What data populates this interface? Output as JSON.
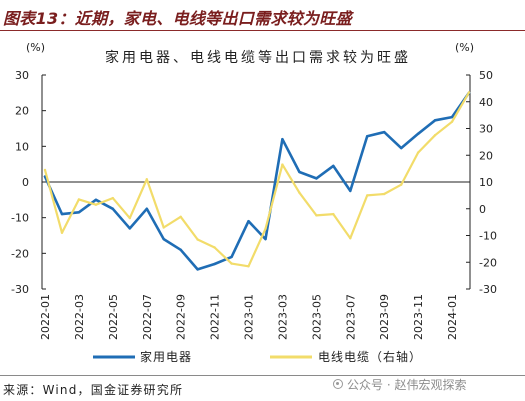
{
  "header": {
    "title": "图表13：近期，家电、电线等出口需求较为旺盛"
  },
  "footer": {
    "source": "来源：Wind，国金证券研究所",
    "watermark": "公众号 · 赵伟宏观探索",
    "watermark_icon": "wechat-icon"
  },
  "colors": {
    "header_text": "#7a1e1e",
    "header_rule": "#8b2a2a",
    "axis": "#222222"
  },
  "chart_data": {
    "type": "line",
    "title": "家用电器、电线电缆等出口需求较为旺盛",
    "x": [
      "2022-01",
      "2022-02",
      "2022-03",
      "2022-04",
      "2022-05",
      "2022-06",
      "2022-07",
      "2022-08",
      "2022-09",
      "2022-10",
      "2022-11",
      "2022-12",
      "2023-01",
      "2023-02",
      "2023-03",
      "2023-04",
      "2023-05",
      "2023-06",
      "2023-07",
      "2023-08",
      "2023-09",
      "2023-10",
      "2023-11",
      "2023-12",
      "2024-01",
      "2024-02"
    ],
    "x_tick_interval_months": 2,
    "y_left": {
      "unit": "(%)",
      "min": -30,
      "max": 30,
      "ticks": [
        30,
        20,
        10,
        0,
        -10,
        -20,
        -30
      ]
    },
    "y_right": {
      "unit": "(%)",
      "min": -30,
      "max": 50,
      "ticks": [
        50,
        40,
        30,
        20,
        10,
        0,
        -10,
        -20,
        -30
      ]
    },
    "grid": false,
    "legend_position": "bottom",
    "series": [
      {
        "name": "家用电器",
        "axis": "left",
        "color": "#1f6db5",
        "values": [
          1.5,
          -9.0,
          -8.5,
          -5.0,
          -7.5,
          -13.0,
          -7.5,
          -16.0,
          -19.0,
          -24.5,
          -23.0,
          -21.0,
          -11.0,
          -16.0,
          12.0,
          2.8,
          1.0,
          4.5,
          -2.5,
          12.8,
          14.0,
          9.5,
          13.5,
          17.3,
          18.2,
          25.0
        ]
      },
      {
        "name": "电线电缆（右轴）",
        "axis": "right",
        "color": "#f2dc6a",
        "values": [
          14.5,
          -9.0,
          3.5,
          1.5,
          4.0,
          -3.5,
          11.0,
          -7.0,
          -3.0,
          -11.5,
          -14.5,
          -20.5,
          -21.5,
          -7.5,
          16.5,
          6.0,
          -2.5,
          -2.0,
          -11.0,
          5.0,
          5.5,
          9.0,
          21.0,
          27.5,
          32.5,
          43.5
        ]
      }
    ]
  }
}
